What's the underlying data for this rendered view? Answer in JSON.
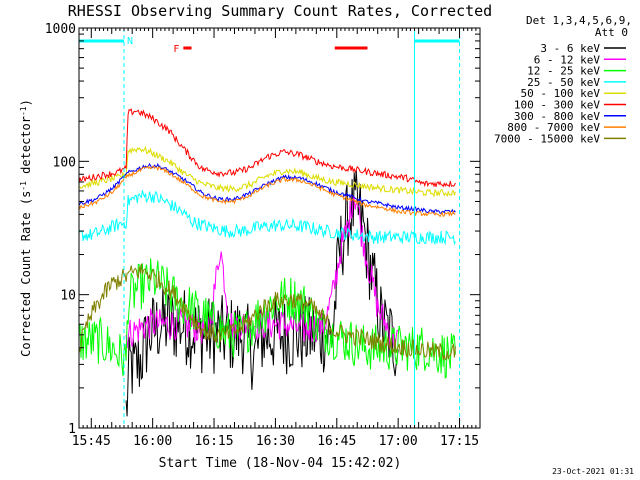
{
  "chart_data": {
    "type": "line",
    "title": "RHESSI Observing Summary Count Rates, Corrected",
    "xlabel": "Start Time (18-Nov-04 15:42:02)",
    "ylabel_main": "Corrected Count Rate (s",
    "ylabel_sup1": "-1",
    "ylabel_mid": " detector",
    "ylabel_sup2": "-1",
    "ylabel_end": ")",
    "yscale": "log",
    "ylim": [
      1,
      1000
    ],
    "xlim_minutes": [
      0,
      98
    ],
    "y_ticks": [
      {
        "label": "1",
        "value": 1
      },
      {
        "label": "10",
        "value": 10
      },
      {
        "label": "100",
        "value": 100
      },
      {
        "label": "1000",
        "value": 1000
      }
    ],
    "x_ticks": [
      {
        "label": "15:45",
        "t": 3
      },
      {
        "label": "16:00",
        "t": 18
      },
      {
        "label": "16:15",
        "t": 33
      },
      {
        "label": "16:30",
        "t": 48
      },
      {
        "label": "16:45",
        "t": 63
      },
      {
        "label": "17:00",
        "t": 78
      },
      {
        "label": "17:15",
        "t": 93
      }
    ],
    "legend_header": [
      "Det 1,3,4,5,6,9,",
      "Att 0"
    ],
    "legend_position": "right",
    "series": [
      {
        "name": "3 - 6 keV",
        "color": "#000000",
        "jitter": 0.3,
        "points": [
          [
            11.5,
            1.3
          ],
          [
            12.5,
            3
          ],
          [
            13.5,
            2.7
          ],
          [
            15,
            3.2
          ],
          [
            17,
            5
          ],
          [
            20,
            6
          ],
          [
            25,
            6
          ],
          [
            30,
            5
          ],
          [
            35,
            5
          ],
          [
            40,
            5
          ],
          [
            43,
            3.5
          ],
          [
            45,
            5
          ],
          [
            50,
            5
          ],
          [
            55,
            5
          ],
          [
            60,
            5
          ],
          [
            62,
            5
          ],
          [
            63.5,
            20
          ],
          [
            66,
            40
          ],
          [
            67.5,
            45
          ],
          [
            69,
            38
          ],
          [
            72,
            12
          ],
          [
            74,
            6
          ],
          [
            76,
            5
          ],
          [
            78,
            4
          ]
        ]
      },
      {
        "name": "6 - 12 keV",
        "color": "#ff00ff",
        "jitter": 0.12,
        "points": [
          [
            11.5,
            5
          ],
          [
            17,
            6
          ],
          [
            20,
            6
          ],
          [
            25,
            6
          ],
          [
            30,
            5.5
          ],
          [
            32,
            6
          ],
          [
            33,
            10
          ],
          [
            34.5,
            23
          ],
          [
            36,
            10
          ],
          [
            37,
            6
          ],
          [
            40,
            6
          ],
          [
            45,
            6
          ],
          [
            50,
            6
          ],
          [
            55,
            5.5
          ],
          [
            60,
            6
          ],
          [
            62,
            10
          ],
          [
            64,
            22
          ],
          [
            66,
            35
          ],
          [
            67,
            58
          ],
          [
            68,
            50
          ],
          [
            69,
            30
          ],
          [
            71,
            15
          ],
          [
            73,
            8
          ],
          [
            75,
            6
          ],
          [
            76,
            5
          ],
          [
            78,
            4.5
          ]
        ]
      },
      {
        "name": "12 - 25 keV",
        "color": "#00ff00",
        "jitter": 0.18,
        "points": [
          [
            0,
            4.5
          ],
          [
            5,
            4.5
          ],
          [
            8,
            4
          ],
          [
            11.5,
            3.2
          ],
          [
            12,
            9
          ],
          [
            14,
            11
          ],
          [
            16,
            12
          ],
          [
            18,
            13
          ],
          [
            20,
            12
          ],
          [
            24,
            9
          ],
          [
            27,
            8
          ],
          [
            30,
            7
          ],
          [
            33,
            6
          ],
          [
            36,
            5
          ],
          [
            40,
            5
          ],
          [
            44,
            7
          ],
          [
            48,
            9
          ],
          [
            52,
            9.5
          ],
          [
            56,
            8
          ],
          [
            58,
            6
          ],
          [
            62,
            5
          ],
          [
            66,
            4.5
          ],
          [
            70,
            4
          ],
          [
            75,
            4
          ],
          [
            80,
            4
          ],
          [
            85,
            4
          ],
          [
            90,
            3.5
          ],
          [
            92,
            3.3
          ]
        ]
      },
      {
        "name": "25 - 50 keV",
        "color": "#00ffff",
        "jitter": 0.05,
        "points": [
          [
            0,
            28
          ],
          [
            3,
            28
          ],
          [
            6,
            30
          ],
          [
            9,
            33
          ],
          [
            11.5,
            35
          ],
          [
            12,
            50
          ],
          [
            15,
            55
          ],
          [
            18,
            55
          ],
          [
            21,
            50
          ],
          [
            25,
            42
          ],
          [
            28,
            35
          ],
          [
            32,
            32
          ],
          [
            36,
            30
          ],
          [
            40,
            30
          ],
          [
            44,
            32
          ],
          [
            48,
            33
          ],
          [
            52,
            33
          ],
          [
            56,
            32
          ],
          [
            60,
            30
          ],
          [
            64,
            29
          ],
          [
            68,
            28
          ],
          [
            72,
            27
          ],
          [
            76,
            27
          ],
          [
            80,
            27
          ],
          [
            85,
            27
          ],
          [
            90,
            27
          ],
          [
            92,
            27
          ]
        ]
      },
      {
        "name": "50 - 100 keV",
        "color": "#dddd00",
        "jitter": 0.025,
        "points": [
          [
            0,
            65
          ],
          [
            5,
            70
          ],
          [
            9,
            75
          ],
          [
            11.5,
            80
          ],
          [
            12,
            120
          ],
          [
            15,
            125
          ],
          [
            18,
            115
          ],
          [
            22,
            100
          ],
          [
            26,
            80
          ],
          [
            30,
            68
          ],
          [
            34,
            63
          ],
          [
            38,
            62
          ],
          [
            42,
            67
          ],
          [
            46,
            78
          ],
          [
            50,
            85
          ],
          [
            54,
            83
          ],
          [
            58,
            75
          ],
          [
            62,
            70
          ],
          [
            66,
            68
          ],
          [
            70,
            65
          ],
          [
            75,
            62
          ],
          [
            80,
            60
          ],
          [
            85,
            58
          ],
          [
            90,
            58
          ],
          [
            92,
            58
          ]
        ]
      },
      {
        "name": "100 - 300 keV",
        "color": "#ff0000",
        "jitter": 0.025,
        "points": [
          [
            0,
            72
          ],
          [
            5,
            78
          ],
          [
            9,
            82
          ],
          [
            11.5,
            88
          ],
          [
            12,
            230
          ],
          [
            14,
            240
          ],
          [
            18,
            210
          ],
          [
            22,
            170
          ],
          [
            26,
            120
          ],
          [
            30,
            88
          ],
          [
            34,
            82
          ],
          [
            38,
            82
          ],
          [
            42,
            90
          ],
          [
            46,
            108
          ],
          [
            50,
            118
          ],
          [
            54,
            112
          ],
          [
            58,
            100
          ],
          [
            62,
            92
          ],
          [
            66,
            88
          ],
          [
            70,
            84
          ],
          [
            74,
            80
          ],
          [
            80,
            75
          ],
          [
            84,
            68
          ],
          [
            90,
            68
          ],
          [
            92,
            68
          ]
        ]
      },
      {
        "name": "300 - 800 keV",
        "color": "#0000ff",
        "jitter": 0.015,
        "points": [
          [
            0,
            48
          ],
          [
            4,
            52
          ],
          [
            8,
            62
          ],
          [
            12,
            82
          ],
          [
            16,
            92
          ],
          [
            19,
            93
          ],
          [
            22,
            85
          ],
          [
            26,
            72
          ],
          [
            30,
            58
          ],
          [
            34,
            52
          ],
          [
            38,
            52
          ],
          [
            42,
            58
          ],
          [
            46,
            68
          ],
          [
            50,
            76
          ],
          [
            54,
            75
          ],
          [
            58,
            68
          ],
          [
            62,
            60
          ],
          [
            66,
            55
          ],
          [
            70,
            50
          ],
          [
            74,
            48
          ],
          [
            78,
            45
          ],
          [
            82,
            44
          ],
          [
            86,
            42
          ],
          [
            90,
            42
          ],
          [
            92,
            42
          ]
        ]
      },
      {
        "name": "800 - 7000 keV",
        "color": "#ff8000",
        "jitter": 0.015,
        "points": [
          [
            0,
            45
          ],
          [
            4,
            49
          ],
          [
            8,
            58
          ],
          [
            12,
            78
          ],
          [
            16,
            88
          ],
          [
            19,
            90
          ],
          [
            22,
            82
          ],
          [
            26,
            68
          ],
          [
            30,
            55
          ],
          [
            34,
            50
          ],
          [
            38,
            50
          ],
          [
            42,
            56
          ],
          [
            46,
            66
          ],
          [
            50,
            73
          ],
          [
            54,
            72
          ],
          [
            58,
            65
          ],
          [
            62,
            57
          ],
          [
            66,
            52
          ],
          [
            70,
            47
          ],
          [
            74,
            45
          ],
          [
            78,
            42
          ],
          [
            82,
            41
          ],
          [
            86,
            40
          ],
          [
            90,
            40
          ],
          [
            92,
            41
          ]
        ]
      },
      {
        "name": "7000 - 15000 keV",
        "color": "#808000",
        "jitter": 0.07,
        "points": [
          [
            0,
            4
          ],
          [
            2,
            6
          ],
          [
            4,
            8
          ],
          [
            6,
            10
          ],
          [
            8,
            12
          ],
          [
            10,
            13
          ],
          [
            12,
            14
          ],
          [
            14,
            15
          ],
          [
            16,
            15
          ],
          [
            18,
            14
          ],
          [
            20,
            12.5
          ],
          [
            22,
            11
          ],
          [
            24,
            9.5
          ],
          [
            26,
            8
          ],
          [
            28,
            6.5
          ],
          [
            30,
            5.5
          ],
          [
            33,
            5
          ],
          [
            36,
            5
          ],
          [
            39,
            5.5
          ],
          [
            42,
            6.5
          ],
          [
            45,
            8
          ],
          [
            48,
            9
          ],
          [
            52,
            9.2
          ],
          [
            56,
            8.5
          ],
          [
            59,
            7
          ],
          [
            62,
            5.5
          ],
          [
            65,
            5
          ],
          [
            68,
            4.8
          ],
          [
            72,
            4.5
          ],
          [
            76,
            4.2
          ],
          [
            80,
            4
          ],
          [
            85,
            3.8
          ],
          [
            90,
            3.7
          ],
          [
            92,
            3.7
          ]
        ]
      }
    ],
    "annotations": {
      "attenuator_label": "N",
      "flare_label": "F",
      "night_bars": [
        [
          0,
          11
        ],
        [
          82,
          93
        ]
      ],
      "night_edges": [
        0,
        11,
        82,
        93
      ],
      "flare_bars": [
        [
          25.5,
          27.5
        ],
        [
          62.5,
          70.5
        ]
      ]
    },
    "footer_timestamp": "23-Oct-2021 01:31"
  }
}
